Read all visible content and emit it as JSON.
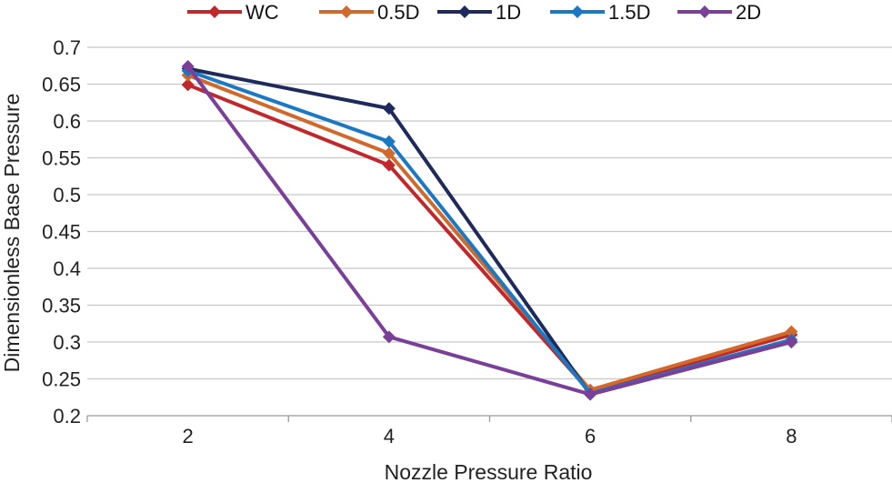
{
  "chart_data": {
    "type": "line",
    "title": "",
    "xlabel": "Nozzle Pressure Ratio",
    "ylabel": "Dimensionless Base Pressure",
    "x": [
      2,
      4,
      6,
      8
    ],
    "xticks": [
      "2",
      "4",
      "6",
      "8"
    ],
    "ylim": [
      0.2,
      0.7
    ],
    "yticks": [
      "0.2",
      "0.25",
      "0.3",
      "0.35",
      "0.4",
      "0.45",
      "0.5",
      "0.55",
      "0.6",
      "0.65",
      "0.7"
    ],
    "grid": true,
    "legend_position": "top",
    "series": [
      {
        "name": "WC",
        "color": "#c0282c",
        "values": [
          0.649,
          0.54,
          0.232,
          0.31
        ]
      },
      {
        "name": "0.5D",
        "color": "#d0692b",
        "values": [
          0.662,
          0.556,
          0.235,
          0.314
        ]
      },
      {
        "name": "1D",
        "color": "#1f2a5c",
        "values": [
          0.671,
          0.617,
          0.229,
          0.3
        ]
      },
      {
        "name": "1.5D",
        "color": "#1b78c2",
        "values": [
          0.668,
          0.572,
          0.23,
          0.303
        ]
      },
      {
        "name": "2D",
        "color": "#7a3f98",
        "values": [
          0.674,
          0.307,
          0.229,
          0.3
        ]
      }
    ]
  }
}
